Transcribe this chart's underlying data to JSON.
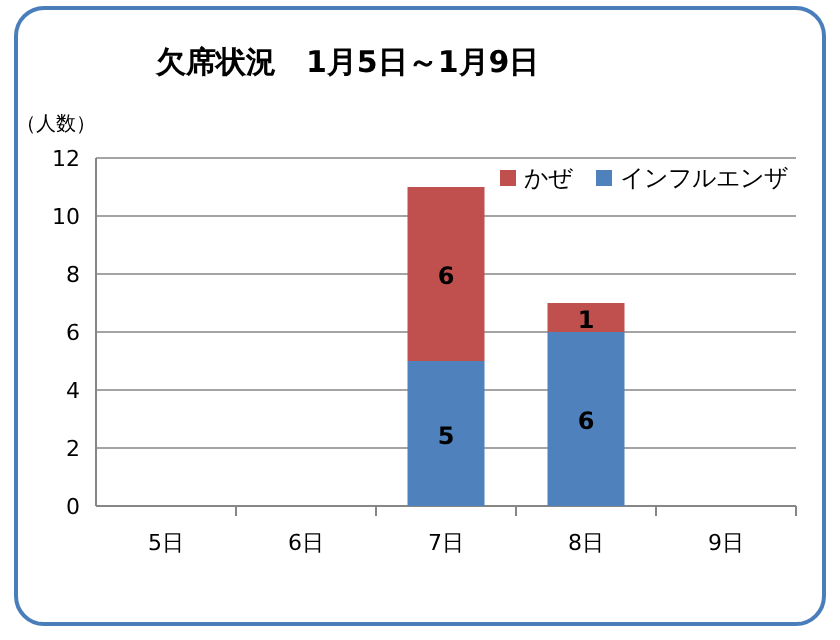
{
  "chart_data": {
    "type": "bar",
    "stacked": true,
    "title": "欠席状況　1月5日～1月9日",
    "ylabel": "（人数）",
    "categories": [
      "5日",
      "6日",
      "7日",
      "8日",
      "9日"
    ],
    "series": [
      {
        "name": "インフルエンザ",
        "color": "#4f81bd",
        "values": [
          0,
          0,
          5,
          6,
          0
        ],
        "value_labels": [
          null,
          null,
          "5",
          "6",
          null
        ]
      },
      {
        "name": "かぜ",
        "color": "#c0504d",
        "values": [
          0,
          0,
          6,
          1,
          0
        ],
        "value_labels": [
          null,
          null,
          "6",
          "1",
          null
        ]
      }
    ],
    "ylim": [
      0,
      12
    ],
    "yticks": [
      0,
      2,
      4,
      6,
      8,
      10,
      12
    ],
    "grid": "y",
    "legend": "top right"
  }
}
